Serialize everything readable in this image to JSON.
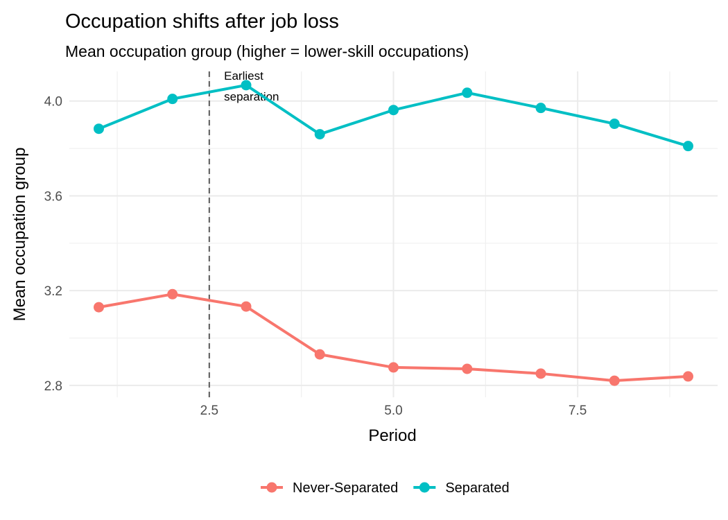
{
  "chart_data": {
    "type": "line",
    "title": "Occupation shifts after job loss",
    "subtitle": "Mean occupation group (higher = lower-skill occupations)",
    "xlabel": "Period",
    "ylabel": "Mean occupation group",
    "xlim": [
      0.6,
      9.4
    ],
    "ylim": [
      2.75,
      4.125
    ],
    "xticks": [
      2.5,
      5.0,
      7.5
    ],
    "xtick_labels": [
      "2.5",
      "5.0",
      "7.5"
    ],
    "yticks": [
      2.8,
      3.2,
      3.6,
      4.0
    ],
    "ytick_labels": [
      "2.8",
      "3.2",
      "3.6",
      "4.0"
    ],
    "grid": true,
    "legend_position": "bottom",
    "x": [
      1,
      2,
      3,
      4,
      5,
      6,
      7,
      8,
      9
    ],
    "series": [
      {
        "name": "Never-Separated",
        "color": "#F8766D",
        "values": [
          3.13,
          3.185,
          3.133,
          2.931,
          2.876,
          2.87,
          2.85,
          2.82,
          2.838
        ]
      },
      {
        "name": "Separated",
        "color": "#00BFC4",
        "values": [
          3.883,
          4.009,
          4.067,
          3.86,
          3.962,
          4.035,
          3.971,
          3.904,
          3.81
        ]
      }
    ],
    "vline": {
      "x": 2.5,
      "style": "dashed"
    },
    "annotation": {
      "text_line1": "Earliest",
      "text_line2": "separation",
      "x": 2.7
    }
  }
}
